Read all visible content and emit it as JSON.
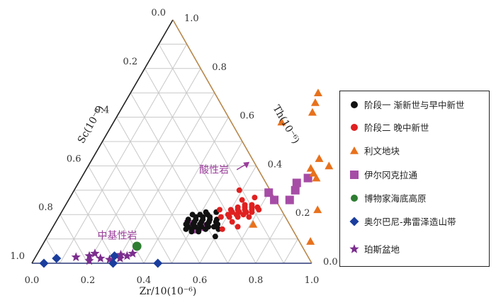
{
  "chart_data": {
    "type": "scatter",
    "subtype": "ternary",
    "axes": {
      "bottom": {
        "label": "Zr/10(10⁻⁶)",
        "ticks": [
          "0.0",
          "0.2",
          "0.4",
          "0.6",
          "0.8",
          "1.0"
        ]
      },
      "left": {
        "label": "Sc(10⁻⁶)",
        "ticks": [
          "1.0",
          "0.8",
          "0.6",
          "0.4",
          "0.2",
          "0.0"
        ]
      },
      "right": {
        "label": "Th(10⁻⁶)",
        "ticks": [
          "0.0",
          "0.2",
          "0.4",
          "0.6",
          "0.8",
          "1.0"
        ]
      }
    },
    "grid": true,
    "legend_position": "right",
    "annotations": [
      {
        "text": "酸性岩",
        "zr": 0.49,
        "th": 0.37,
        "color": "#9b3d9b"
      },
      {
        "text": "中基性岩",
        "zr": 0.28,
        "th": 0.1,
        "color": "#9b3d9b"
      }
    ],
    "series": [
      {
        "name": "阶段一 渐新世与早中新世",
        "marker": "circle",
        "color": "#111111",
        "points": [
          [
            0.473,
            0.2
          ],
          [
            0.5,
            0.2
          ],
          [
            0.527,
            0.2
          ],
          [
            0.49,
            0.19
          ],
          [
            0.515,
            0.19
          ],
          [
            0.54,
            0.19
          ],
          [
            0.468,
            0.18
          ],
          [
            0.495,
            0.18
          ],
          [
            0.52,
            0.18
          ],
          [
            0.545,
            0.18
          ],
          [
            0.57,
            0.18
          ],
          [
            0.47,
            0.17
          ],
          [
            0.495,
            0.17
          ],
          [
            0.52,
            0.17
          ],
          [
            0.547,
            0.17
          ],
          [
            0.572,
            0.17
          ],
          [
            0.47,
            0.16
          ],
          [
            0.495,
            0.16
          ],
          [
            0.52,
            0.16
          ],
          [
            0.545,
            0.16
          ],
          [
            0.482,
            0.15
          ],
          [
            0.507,
            0.15
          ],
          [
            0.53,
            0.15
          ],
          [
            0.555,
            0.15
          ],
          [
            0.48,
            0.14
          ],
          [
            0.5,
            0.14
          ],
          [
            0.525,
            0.14
          ],
          [
            0.55,
            0.14
          ],
          [
            0.505,
            0.13
          ],
          [
            0.53,
            0.13
          ],
          [
            0.575,
            0.15
          ],
          [
            0.596,
            0.14
          ],
          [
            0.6,
            0.11
          ],
          [
            0.516,
            0.21
          ],
          [
            0.553,
            0.21
          ],
          [
            0.583,
            0.16
          ]
        ]
      },
      {
        "name": "阶段二 晚中新世",
        "marker": "circle",
        "color": "#e02020",
        "points": [
          [
            0.64,
            0.24
          ],
          [
            0.665,
            0.24
          ],
          [
            0.62,
            0.23
          ],
          [
            0.645,
            0.23
          ],
          [
            0.67,
            0.23
          ],
          [
            0.69,
            0.23
          ],
          [
            0.6,
            0.22
          ],
          [
            0.625,
            0.22
          ],
          [
            0.65,
            0.22
          ],
          [
            0.675,
            0.22
          ],
          [
            0.61,
            0.21
          ],
          [
            0.635,
            0.21
          ],
          [
            0.66,
            0.21
          ],
          [
            0.68,
            0.21
          ],
          [
            0.63,
            0.2
          ],
          [
            0.655,
            0.2
          ],
          [
            0.61,
            0.19
          ],
          [
            0.64,
            0.19
          ],
          [
            0.63,
            0.17
          ],
          [
            0.6,
            0.2
          ],
          [
            0.56,
            0.22
          ],
          [
            0.62,
            0.26
          ],
          [
            0.66,
            0.27
          ],
          [
            0.7,
            0.22
          ],
          [
            0.59,
            0.3
          ],
          [
            0.66,
            0.15
          ],
          [
            0.61,
            0.14
          ],
          [
            0.58,
            0.19
          ],
          [
            0.68,
            0.19
          ]
        ]
      },
      {
        "name": "利文地块",
        "marker": "triangle",
        "color": "#e8711c",
        "points": [
          [
            0.67,
            0.7
          ],
          [
            0.68,
            0.66
          ],
          [
            0.69,
            0.62
          ],
          [
            0.6,
            0.58
          ],
          [
            0.81,
            0.43
          ],
          [
            0.8,
            0.39
          ],
          [
            0.82,
            0.37
          ],
          [
            0.84,
            0.35
          ],
          [
            0.91,
            0.22
          ],
          [
            0.95,
            0.09
          ],
          [
            0.71,
            0.16
          ],
          [
            0.86,
            0.4
          ]
        ]
      },
      {
        "name": "伊尔冈克拉通",
        "marker": "square",
        "color": "#a64ca6",
        "points": [
          [
            0.81,
            0.35
          ],
          [
            0.78,
            0.33
          ],
          [
            0.79,
            0.3
          ],
          [
            0.79,
            0.26
          ],
          [
            0.735,
            0.26
          ],
          [
            0.7,
            0.29
          ],
          [
            0.48,
            0.16
          ],
          [
            0.51,
            0.14
          ],
          [
            0.53,
            0.15
          ]
        ]
      },
      {
        "name": "博物家海底高原",
        "marker": "circle",
        "color": "#2e7d32",
        "points": [
          [
            0.34,
            0.07
          ]
        ]
      },
      {
        "name": "奥尔巴尼-弗雷泽造山带",
        "marker": "diamond",
        "color": "#1a3d9e",
        "points": [
          [
            0.043,
            0.0
          ],
          [
            0.078,
            0.02
          ],
          [
            0.28,
            0.03
          ],
          [
            0.29,
            0.0
          ],
          [
            0.45,
            0.0
          ]
        ]
      },
      {
        "name": "珀斯盆地",
        "marker": "star",
        "color": "#7b2d8e",
        "points": [
          [
            0.145,
            0.025
          ],
          [
            0.19,
            0.03
          ],
          [
            0.205,
            0.04
          ],
          [
            0.235,
            0.02
          ],
          [
            0.27,
            0.015
          ],
          [
            0.305,
            0.02
          ],
          [
            0.325,
            0.03
          ],
          [
            0.34,
            0.04
          ],
          [
            0.3,
            0.035
          ],
          [
            0.2,
            0.01
          ]
        ]
      }
    ]
  },
  "legend": {
    "items": [
      {
        "marker": "circle",
        "color": "#111111",
        "label": "阶段一 渐新世与早中新世"
      },
      {
        "marker": "circle",
        "color": "#e02020",
        "label": "阶段二 晚中新世"
      },
      {
        "marker": "triangle",
        "color": "#e8711c",
        "label": "利文地块"
      },
      {
        "marker": "square",
        "color": "#a64ca6",
        "label": "伊尔冈克拉通"
      },
      {
        "marker": "circle",
        "color": "#2e7d32",
        "label": "博物家海底高原"
      },
      {
        "marker": "diamond",
        "color": "#1a3d9e",
        "label": "奥尔巴尼-弗雷泽造山带"
      },
      {
        "marker": "star",
        "color": "#7b2d8e",
        "label": "珀斯盆地"
      }
    ]
  },
  "colors": {
    "left_edge": "#222222",
    "bottom_edge": "#2b3a7a",
    "right_edge": "#b8884c",
    "grid": "#c8c8c8",
    "arrow": "#9b3d9b"
  }
}
